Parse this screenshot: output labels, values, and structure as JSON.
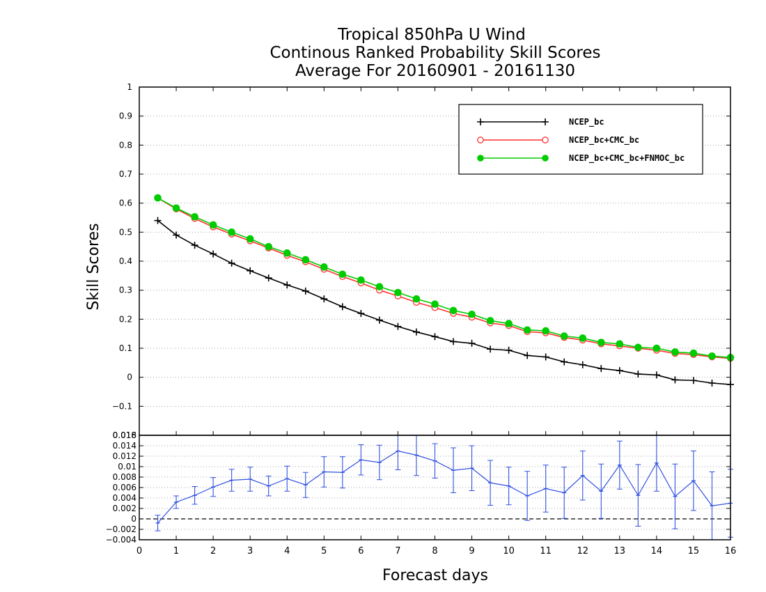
{
  "titles": [
    "Tropical 850hPa U Wind",
    "Continous Ranked Probability Skill Scores",
    "Average For 20160901 - 20161130"
  ],
  "chart_data": [
    {
      "type": "line",
      "xlabel": "Forecast days",
      "ylabel": "Skill Scores",
      "xlim": [
        0,
        16
      ],
      "ylim": [
        -0.2,
        1
      ],
      "xticks": [
        0,
        1,
        2,
        3,
        4,
        5,
        6,
        7,
        8,
        9,
        10,
        11,
        12,
        13,
        14,
        15,
        16
      ],
      "yticks": [
        -0.1,
        0,
        0.1,
        0.2,
        0.3,
        0.4,
        0.5,
        0.6,
        0.7,
        0.8,
        0.9,
        1
      ],
      "ytick_labels": [
        "−0.1",
        "0",
        "0.1",
        "0.2",
        "0.3",
        "0.4",
        "0.5",
        "0.6",
        "0.7",
        "0.8",
        "0.9",
        "1"
      ],
      "grid": true,
      "legend_position": "top-right",
      "x": [
        0.5,
        1,
        1.5,
        2,
        2.5,
        3,
        3.5,
        4,
        4.5,
        5,
        5.5,
        6,
        6.5,
        7,
        7.5,
        8,
        8.5,
        9,
        9.5,
        10,
        10.5,
        11,
        11.5,
        12,
        12.5,
        13,
        13.5,
        14,
        14.5,
        15,
        15.5,
        16
      ],
      "series": [
        {
          "name": "NCEP_bc",
          "color": "#000000",
          "marker": "plus",
          "values": [
            0.54,
            0.49,
            0.455,
            0.425,
            0.393,
            0.367,
            0.342,
            0.318,
            0.297,
            0.27,
            0.243,
            0.22,
            0.197,
            0.175,
            0.156,
            0.14,
            0.123,
            0.117,
            0.097,
            0.093,
            0.075,
            0.07,
            0.053,
            0.043,
            0.03,
            0.023,
            0.011,
            0.008,
            -0.009,
            -0.011,
            -0.02,
            -0.025
          ]
        },
        {
          "name": "NCEP_bc+CMC_bc",
          "color": "#ff3030",
          "marker": "open-circle",
          "values": [
            0.618,
            0.58,
            0.547,
            0.518,
            0.493,
            0.47,
            0.445,
            0.42,
            0.398,
            0.372,
            0.347,
            0.325,
            0.3,
            0.28,
            0.258,
            0.24,
            0.22,
            0.207,
            0.187,
            0.178,
            0.157,
            0.153,
            0.137,
            0.128,
            0.115,
            0.108,
            0.1,
            0.093,
            0.082,
            0.078,
            0.07,
            0.065
          ]
        },
        {
          "name": "NCEP_bc+CMC_bc+FNMOC_bc",
          "color": "#00cc00",
          "marker": "filled-circle",
          "values": [
            0.618,
            0.583,
            0.553,
            0.525,
            0.5,
            0.477,
            0.45,
            0.428,
            0.405,
            0.38,
            0.355,
            0.335,
            0.312,
            0.292,
            0.27,
            0.252,
            0.23,
            0.217,
            0.195,
            0.185,
            0.163,
            0.16,
            0.142,
            0.135,
            0.12,
            0.115,
            0.103,
            0.1,
            0.087,
            0.083,
            0.073,
            0.068
          ]
        }
      ]
    },
    {
      "type": "line",
      "xlabel": "Forecast days",
      "xlim": [
        0,
        16
      ],
      "ylim": [
        -0.004,
        0.016
      ],
      "xticks": [
        0,
        1,
        2,
        3,
        4,
        5,
        6,
        7,
        8,
        9,
        10,
        11,
        12,
        13,
        14,
        15,
        16
      ],
      "yticks": [
        -0.004,
        -0.002,
        0,
        0.002,
        0.004,
        0.006,
        0.008,
        0.01,
        0.012,
        0.014,
        0.016
      ],
      "ytick_labels": [
        "−0.004",
        "−0.002",
        "0",
        "0.002",
        "0.004",
        "0.006",
        "0.008",
        "0.01",
        "0.012",
        "0.014",
        "0.016"
      ],
      "top_label": "0.018",
      "grid": true,
      "zero_line": true,
      "x": [
        0.5,
        1,
        1.5,
        2,
        2.5,
        3,
        3.5,
        4,
        4.5,
        5,
        5.5,
        6,
        6.5,
        7,
        7.5,
        8,
        8.5,
        9,
        9.5,
        10,
        10.5,
        11,
        11.5,
        12,
        12.5,
        13,
        13.5,
        14,
        14.5,
        15,
        15.5,
        16
      ],
      "series": [
        {
          "color": "#3050e0",
          "values": [
            -0.0008,
            0.0032,
            0.0045,
            0.0061,
            0.0074,
            0.0076,
            0.0063,
            0.0077,
            0.0065,
            0.009,
            0.0089,
            0.0113,
            0.0108,
            0.013,
            0.0122,
            0.0111,
            0.0093,
            0.0097,
            0.0069,
            0.0063,
            0.0044,
            0.0058,
            0.005,
            0.0083,
            0.0053,
            0.0103,
            0.0045,
            0.0107,
            0.0043,
            0.0073,
            0.0025,
            0.003
          ],
          "error": [
            0.0015,
            0.0012,
            0.0017,
            0.0018,
            0.0021,
            0.0023,
            0.0019,
            0.0024,
            0.0024,
            0.0029,
            0.003,
            0.0029,
            0.0033,
            0.0036,
            0.0039,
            0.0033,
            0.0043,
            0.0043,
            0.0043,
            0.0036,
            0.0047,
            0.0045,
            0.0049,
            0.0047,
            0.0052,
            0.0046,
            0.0059,
            0.0054,
            0.0062,
            0.0057,
            0.0065,
            0.0065
          ]
        }
      ]
    }
  ]
}
